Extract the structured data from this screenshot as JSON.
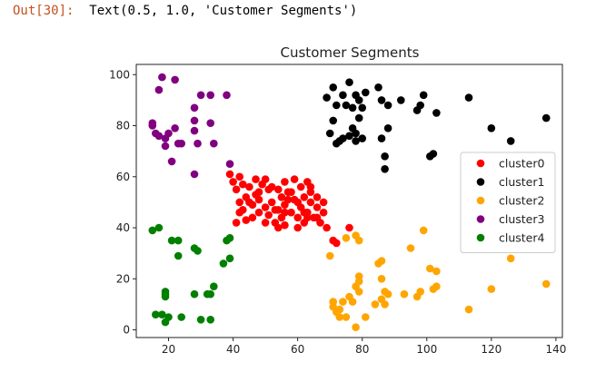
{
  "output": {
    "prompt": "Out[30]:",
    "text": "Text(0.5, 1.0, 'Customer Segments')"
  },
  "chart_data": {
    "type": "scatter",
    "title": "Customer Segments",
    "xlabel": "",
    "ylabel": "",
    "xlim": [
      10,
      142
    ],
    "ylim": [
      -3,
      104
    ],
    "xticks": [
      20,
      40,
      60,
      80,
      100,
      120,
      140
    ],
    "yticks": [
      0,
      20,
      40,
      60,
      80,
      100
    ],
    "grid": false,
    "legend_position": "right",
    "series": [
      {
        "name": "cluster0",
        "color": "#ff0000",
        "points": [
          [
            39,
            61
          ],
          [
            40,
            58
          ],
          [
            41,
            55
          ],
          [
            42,
            60
          ],
          [
            42,
            50
          ],
          [
            43,
            57
          ],
          [
            43,
            47
          ],
          [
            44,
            52
          ],
          [
            44,
            43
          ],
          [
            45,
            56
          ],
          [
            46,
            49
          ],
          [
            46,
            44
          ],
          [
            47,
            59
          ],
          [
            47,
            53
          ],
          [
            48,
            51
          ],
          [
            48,
            46
          ],
          [
            49,
            57
          ],
          [
            50,
            59
          ],
          [
            50,
            48
          ],
          [
            51,
            55
          ],
          [
            51,
            45
          ],
          [
            52,
            50
          ],
          [
            53,
            42
          ],
          [
            54,
            55
          ],
          [
            54,
            47
          ],
          [
            55,
            52
          ],
          [
            55,
            44
          ],
          [
            56,
            58
          ],
          [
            56,
            49
          ],
          [
            56,
            41
          ],
          [
            57,
            54
          ],
          [
            58,
            46
          ],
          [
            59,
            59
          ],
          [
            59,
            51
          ],
          [
            60,
            44
          ],
          [
            61,
            56
          ],
          [
            61,
            48
          ],
          [
            62,
            52
          ],
          [
            62,
            42
          ],
          [
            63,
            58
          ],
          [
            63,
            46
          ],
          [
            64,
            50
          ],
          [
            64,
            54
          ],
          [
            65,
            44
          ],
          [
            66,
            48
          ],
          [
            66,
            52
          ],
          [
            67,
            42
          ],
          [
            68,
            46
          ],
          [
            69,
            40
          ],
          [
            71,
            35
          ],
          [
            72,
            34
          ],
          [
            76,
            40
          ],
          [
            41,
            42
          ],
          [
            42,
            46
          ],
          [
            45,
            50
          ],
          [
            48,
            54
          ],
          [
            50,
            42
          ],
          [
            52,
            56
          ],
          [
            54,
            40
          ],
          [
            56,
            46
          ],
          [
            58,
            54
          ],
          [
            60,
            40
          ],
          [
            62,
            46
          ],
          [
            64,
            56
          ],
          [
            66,
            44
          ],
          [
            68,
            50
          ],
          [
            53,
            47
          ],
          [
            57,
            51
          ],
          [
            60,
            50
          ],
          [
            63,
            44
          ]
        ]
      },
      {
        "name": "cluster1",
        "color": "#000000",
        "points": [
          [
            69,
            91
          ],
          [
            70,
            77
          ],
          [
            71,
            95
          ],
          [
            72,
            73
          ],
          [
            72,
            88
          ],
          [
            73,
            74
          ],
          [
            74,
            92
          ],
          [
            74,
            75
          ],
          [
            75,
            88
          ],
          [
            76,
            97
          ],
          [
            76,
            76
          ],
          [
            77,
            79
          ],
          [
            77,
            87
          ],
          [
            78,
            92
          ],
          [
            78,
            77
          ],
          [
            78,
            74
          ],
          [
            79,
            83
          ],
          [
            79,
            90
          ],
          [
            80,
            87
          ],
          [
            81,
            93
          ],
          [
            85,
            95
          ],
          [
            86,
            75
          ],
          [
            86,
            90
          ],
          [
            87,
            63
          ],
          [
            87,
            68
          ],
          [
            88,
            88
          ],
          [
            88,
            79
          ],
          [
            92,
            90
          ],
          [
            97,
            86
          ],
          [
            98,
            88
          ],
          [
            99,
            92
          ],
          [
            101,
            68
          ],
          [
            102,
            69
          ],
          [
            103,
            85
          ],
          [
            113,
            91
          ],
          [
            120,
            79
          ],
          [
            126,
            74
          ],
          [
            137,
            83
          ],
          [
            71,
            82
          ],
          [
            80,
            75
          ]
        ]
      },
      {
        "name": "cluster2",
        "color": "#ffa500",
        "points": [
          [
            70,
            29
          ],
          [
            71,
            11
          ],
          [
            71,
            9
          ],
          [
            72,
            7
          ],
          [
            73,
            5
          ],
          [
            74,
            11
          ],
          [
            75,
            36
          ],
          [
            75,
            5
          ],
          [
            76,
            13
          ],
          [
            77,
            11
          ],
          [
            78,
            37
          ],
          [
            78,
            17
          ],
          [
            78,
            1
          ],
          [
            79,
            21
          ],
          [
            79,
            15
          ],
          [
            79,
            35
          ],
          [
            81,
            5
          ],
          [
            84,
            10
          ],
          [
            85,
            26
          ],
          [
            86,
            27
          ],
          [
            86,
            20
          ],
          [
            86,
            12
          ],
          [
            87,
            15
          ],
          [
            87,
            10
          ],
          [
            88,
            14
          ],
          [
            93,
            14
          ],
          [
            95,
            32
          ],
          [
            97,
            13
          ],
          [
            98,
            15
          ],
          [
            99,
            39
          ],
          [
            101,
            24
          ],
          [
            102,
            16
          ],
          [
            103,
            23
          ],
          [
            103,
            17
          ],
          [
            113,
            8
          ],
          [
            120,
            16
          ],
          [
            126,
            28
          ],
          [
            137,
            18
          ],
          [
            79,
            19
          ],
          [
            73,
            8
          ]
        ]
      },
      {
        "name": "cluster3",
        "color": "#800080",
        "points": [
          [
            15,
            81
          ],
          [
            16,
            77
          ],
          [
            17,
            76
          ],
          [
            17,
            94
          ],
          [
            18,
            99
          ],
          [
            19,
            72
          ],
          [
            20,
            77
          ],
          [
            21,
            66
          ],
          [
            22,
            98
          ],
          [
            23,
            73
          ],
          [
            24,
            73
          ],
          [
            28,
            61
          ],
          [
            28,
            82
          ],
          [
            28,
            87
          ],
          [
            29,
            73
          ],
          [
            30,
            92
          ],
          [
            33,
            81
          ],
          [
            33,
            92
          ],
          [
            34,
            73
          ],
          [
            38,
            92
          ],
          [
            39,
            65
          ],
          [
            28,
            78
          ],
          [
            19,
            75
          ],
          [
            15,
            80
          ],
          [
            22,
            79
          ]
        ]
      },
      {
        "name": "cluster4",
        "color": "#008000",
        "points": [
          [
            15,
            39
          ],
          [
            16,
            6
          ],
          [
            17,
            40
          ],
          [
            18,
            6
          ],
          [
            19,
            3
          ],
          [
            19,
            14
          ],
          [
            19,
            15
          ],
          [
            19,
            13
          ],
          [
            20,
            5
          ],
          [
            21,
            35
          ],
          [
            23,
            29
          ],
          [
            23,
            35
          ],
          [
            24,
            5
          ],
          [
            28,
            14
          ],
          [
            28,
            32
          ],
          [
            29,
            31
          ],
          [
            30,
            4
          ],
          [
            32,
            14
          ],
          [
            33,
            4
          ],
          [
            34,
            17
          ],
          [
            37,
            26
          ],
          [
            38,
            35
          ],
          [
            39,
            36
          ],
          [
            39,
            28
          ],
          [
            33,
            14
          ]
        ]
      }
    ]
  }
}
